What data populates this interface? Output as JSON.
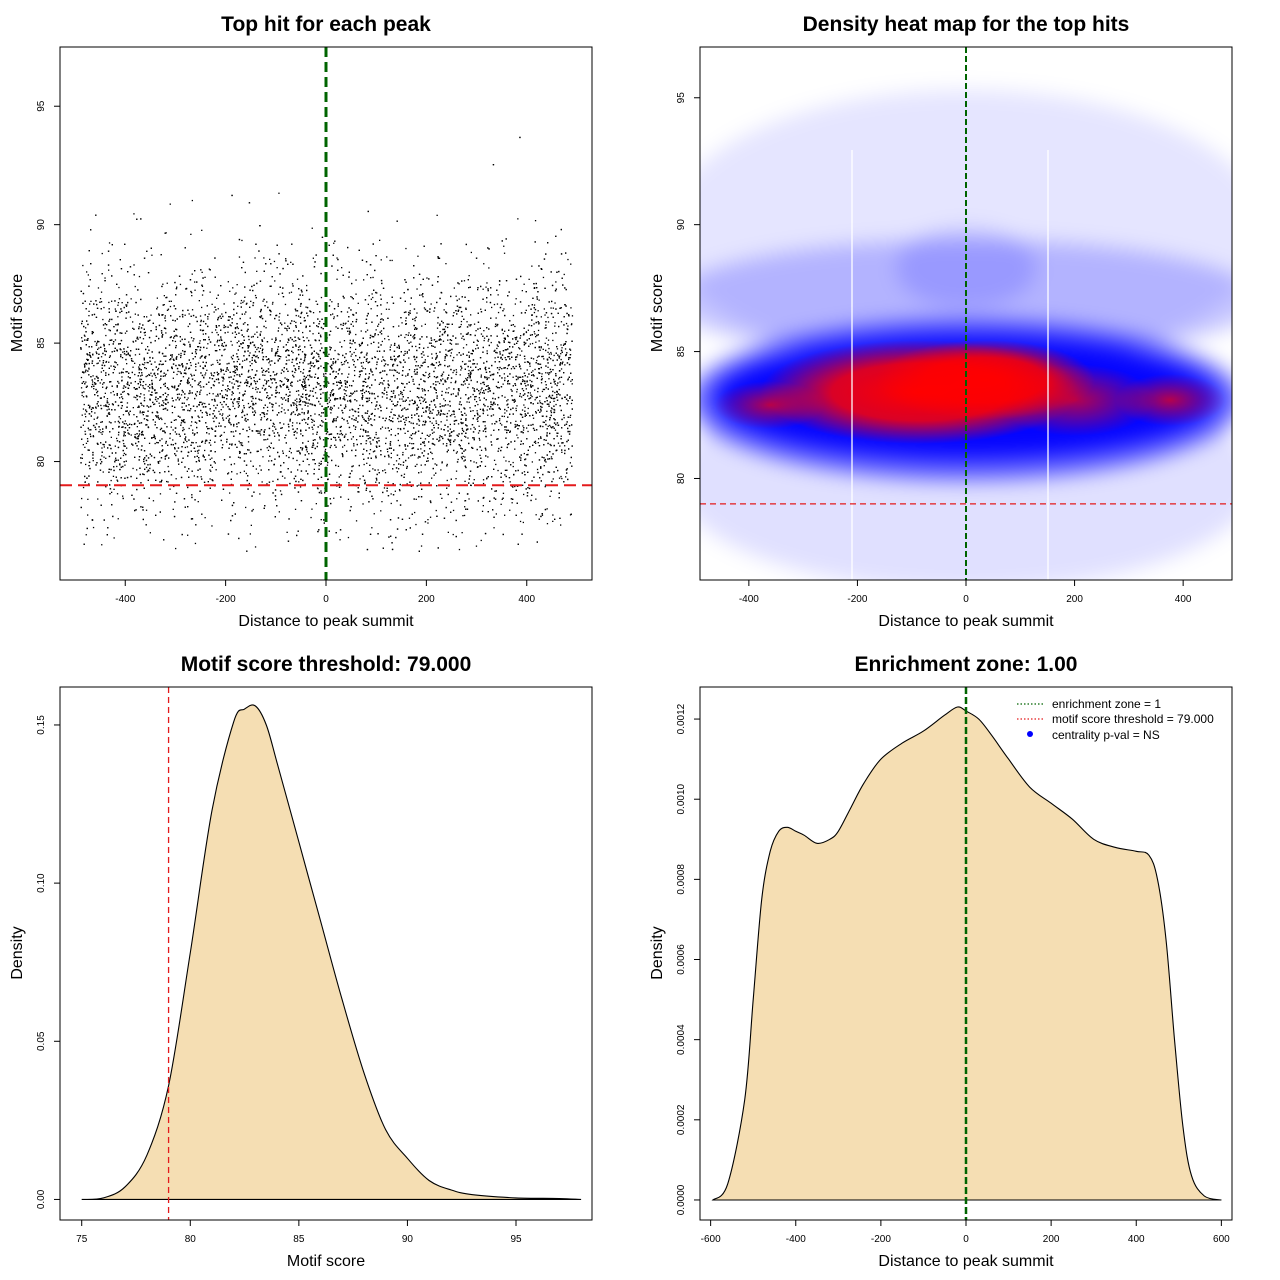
{
  "chart_data": [
    {
      "type": "scatter",
      "title": "Top hit for each peak",
      "xlabel": "Distance to peak summit",
      "ylabel": "Motif score",
      "xlim": [
        -530,
        530
      ],
      "ylim": [
        75,
        97.5
      ],
      "xticks": [
        -400,
        -200,
        0,
        200,
        400
      ],
      "yticks": [
        80,
        85,
        90,
        95
      ],
      "x_range": [
        -490,
        490
      ],
      "y_center": 83,
      "y_spread": 2.5,
      "n_points": 9000,
      "vline": {
        "x": 0,
        "color": "#006400"
      },
      "hline": {
        "y": 79,
        "color": "#e41a1c"
      },
      "point_color": "#000000"
    },
    {
      "type": "heatmap",
      "title": "Density heat map for the top hits",
      "xlabel": "Distance to peak summit",
      "ylabel": "Motif score",
      "xlim": [
        -490,
        490
      ],
      "ylim": [
        76,
        97
      ],
      "xticks": [
        -400,
        -200,
        0,
        200,
        400
      ],
      "yticks": [
        80,
        85,
        90,
        95
      ],
      "vline": {
        "x": 0,
        "color": "#006400"
      },
      "hline": {
        "y": 79,
        "color": "#e41a1c"
      },
      "colors": [
        "#ffffff",
        "#0000ff",
        "#ff0000"
      ]
    },
    {
      "type": "area",
      "title": "Motif score threshold: 79.000",
      "xlabel": "Motif score",
      "ylabel": "Density",
      "xlim": [
        74,
        98.5
      ],
      "ylim": [
        -0.0065,
        0.162
      ],
      "xticks": [
        75,
        80,
        85,
        90,
        95
      ],
      "yticks": [
        0.0,
        0.05,
        0.1,
        0.15
      ],
      "ytick_labels": [
        "0.00",
        "0.05",
        "0.10",
        "0.15"
      ],
      "x": [
        75,
        76,
        77,
        78,
        79,
        80,
        81,
        82,
        82.5,
        83,
        83.5,
        84,
        85,
        86,
        87,
        88,
        89,
        90,
        91,
        92,
        93,
        95,
        97,
        98
      ],
      "y": [
        0.0,
        0.0005,
        0.004,
        0.014,
        0.036,
        0.078,
        0.123,
        0.151,
        0.155,
        0.156,
        0.15,
        0.138,
        0.113,
        0.088,
        0.063,
        0.04,
        0.022,
        0.013,
        0.006,
        0.003,
        0.0015,
        0.0005,
        0.0003,
        0.0
      ],
      "fill": "#f5deb3",
      "vline": {
        "x": 79,
        "color": "#e41a1c"
      }
    },
    {
      "type": "area",
      "title": "Enrichment zone: 1.00",
      "xlabel": "Distance to peak summit",
      "ylabel": "Density",
      "xlim": [
        -625,
        625
      ],
      "ylim": [
        -5e-05,
        0.00128
      ],
      "xticks": [
        -600,
        -400,
        -200,
        0,
        200,
        400,
        600
      ],
      "yticks": [
        0.0,
        0.0002,
        0.0004,
        0.0006,
        0.0008,
        0.001,
        0.0012
      ],
      "ytick_labels": [
        "0.0000",
        "0.0002",
        "0.0004",
        "0.0006",
        "0.0008",
        "0.0010",
        "0.0012"
      ],
      "x": [
        -595,
        -560,
        -520,
        -500,
        -480,
        -460,
        -440,
        -420,
        -400,
        -380,
        -350,
        -320,
        -300,
        -270,
        -240,
        -200,
        -150,
        -100,
        -50,
        -20,
        0,
        30,
        60,
        100,
        150,
        200,
        250,
        300,
        350,
        400,
        430,
        450,
        470,
        490,
        510,
        530,
        560,
        600
      ],
      "y": [
        0.0,
        4e-05,
        0.00025,
        0.0005,
        0.00075,
        0.00087,
        0.00092,
        0.00093,
        0.00092,
        0.00091,
        0.00089,
        0.0009,
        0.00092,
        0.00098,
        0.00104,
        0.0011,
        0.00114,
        0.00117,
        0.00121,
        0.00123,
        0.00122,
        0.0012,
        0.00116,
        0.0011,
        0.00103,
        0.00099,
        0.00095,
        0.0009,
        0.00088,
        0.00087,
        0.00086,
        0.0008,
        0.00065,
        0.0004,
        0.00018,
        6e-05,
        1e-05,
        0.0
      ],
      "fill": "#f5deb3",
      "vline": {
        "x": 0,
        "color": "#006400"
      },
      "legend": {
        "position": "top-right",
        "items": [
          {
            "label": "enrichment zone = 1",
            "color": "#006400",
            "kind": "dotted-line"
          },
          {
            "label": "motif score threshold = 79.000",
            "color": "#e41a1c",
            "kind": "dotted-line"
          },
          {
            "label": "centrality p-val = NS",
            "color": "#0000ff",
            "kind": "point"
          }
        ]
      }
    }
  ]
}
